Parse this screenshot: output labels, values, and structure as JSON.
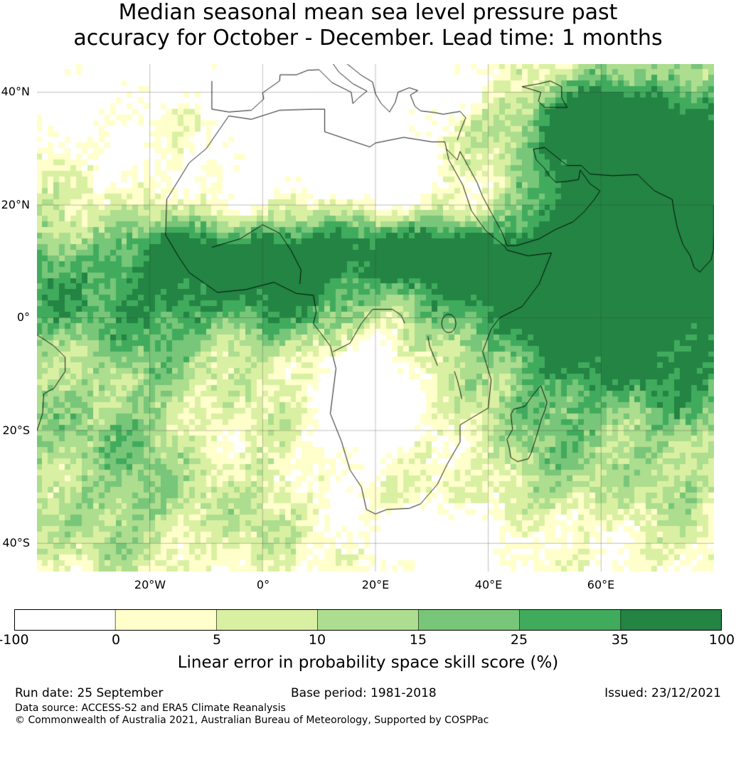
{
  "title": {
    "line1": "Median seasonal mean sea level pressure past",
    "line2": "accuracy for October - December. Lead time: 1 months"
  },
  "map": {
    "latitude_labels": [
      "40°N",
      "20°N",
      "0°",
      "20°S",
      "40°S"
    ],
    "longitude_labels": [
      "20°W",
      "0°",
      "20°E",
      "40°E",
      "60°E"
    ],
    "extent": {
      "lon_min": -40,
      "lon_max": 80,
      "lat_min": -45,
      "lat_max": 45
    }
  },
  "colorbar": {
    "ticks": [
      "-100",
      "0",
      "5",
      "10",
      "15",
      "25",
      "35",
      "100"
    ],
    "colors": [
      "#ffffff",
      "#ffffcc",
      "#d9f0a3",
      "#addd8e",
      "#78c679",
      "#41ab5d",
      "#238443"
    ],
    "label": "Linear error in probability space skill score (%)"
  },
  "footer": {
    "run_date": "Run date: 25 September",
    "base_period": "Base period: 1981-2018",
    "issued": "Issued: 23/12/2021",
    "data_source": "Data source: ACCESS-S2 and ERA5 Climate Reanalysis",
    "copyright": "© Commonwealth of Australia 2021, Australian Bureau of Meteorology, Supported by COSPPac"
  }
}
